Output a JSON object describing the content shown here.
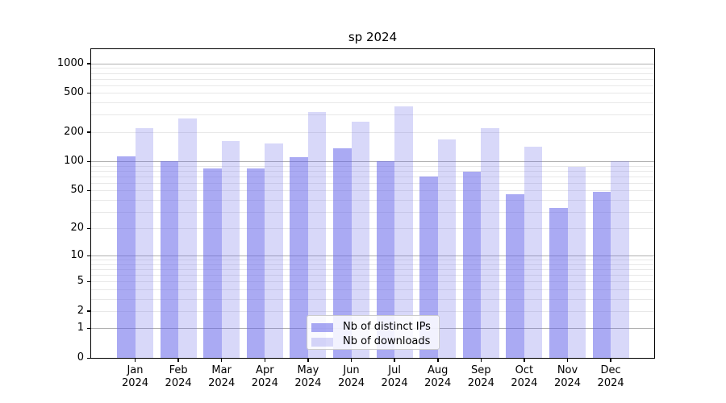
{
  "title": "sp 2024",
  "chart_data": {
    "type": "bar",
    "title": "sp 2024",
    "categories": [
      "Jan 2024",
      "Feb 2024",
      "Mar 2024",
      "Apr 2024",
      "May 2024",
      "Jun 2024",
      "Jul 2024",
      "Aug 2024",
      "Sep 2024",
      "Oct 2024",
      "Nov 2024",
      "Dec 2024"
    ],
    "series": [
      {
        "name": "Nb of distinct IPs",
        "values": [
          113,
          100,
          84,
          85,
          110,
          136,
          100,
          69,
          78,
          46,
          33,
          48
        ],
        "color": "#6464e9",
        "alpha": 0.55
      },
      {
        "name": "Nb of downloads",
        "values": [
          220,
          277,
          162,
          152,
          320,
          255,
          368,
          167,
          219,
          142,
          88,
          100
        ],
        "color": "#6464e9",
        "alpha": 0.25
      }
    ],
    "yscale": "log1p",
    "ylim": [
      0,
      1400
    ],
    "y_ticks": [
      0,
      1,
      2,
      5,
      10,
      20,
      50,
      100,
      200,
      500,
      1000
    ],
    "grid": true,
    "legend_position": "lower center",
    "colors": {
      "major_grid": "#b0b0b0",
      "minor_grid": "#e8e8e8",
      "spine": "#000000"
    }
  }
}
